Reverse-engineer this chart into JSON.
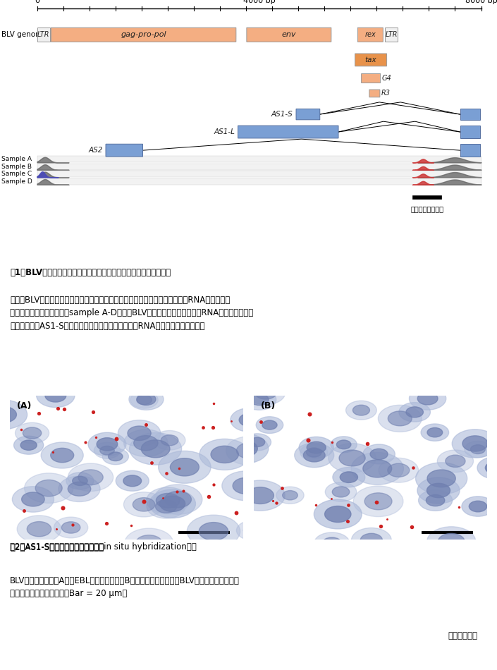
{
  "bg_color": "#ffffff",
  "orange_color": "#f4ae82",
  "orange_dark": "#e8924a",
  "blue_color": "#7a9fd4",
  "genome_scale_max": 8700,
  "fig1_line1": "図1　BLVゲノム模式図と今回設計したプローブの位置を示す概略図",
  "fig1_line2": "上段はBLVゲノム中のタンパク質に翻訳される違伝子（オレンジ）と非翻訳性RNA違伝子（青",
  "fig1_line3": "色）を、下段が腫瘥細脹（sample A-D）中でBLVゲノムから発現しているRNAの場所と量（縦",
  "fig1_line4": "軸）を示す。AS1-S違伝子の位置と一致してウイルスRNAの発現が認められる。",
  "fig2_line1a": "図2　AS1-Sを標的とした組織染色（",
  "fig2_line1b": "in situ",
  "fig2_line1c": " hybridization）。",
  "fig2_line2": "BLV感染培養細胞（A）とEBL由来腫瘥組織（B）どちらにおいても、BLV感染細胞のシグナル",
  "fig2_line3": "（赤色）　が認められる。Bar = 20 μm。",
  "author": "（安藤清彦）",
  "probe_label": "プローブ設計位置",
  "samples": [
    "Sample A",
    "Sample B",
    "Sample C",
    "Sample D"
  ]
}
